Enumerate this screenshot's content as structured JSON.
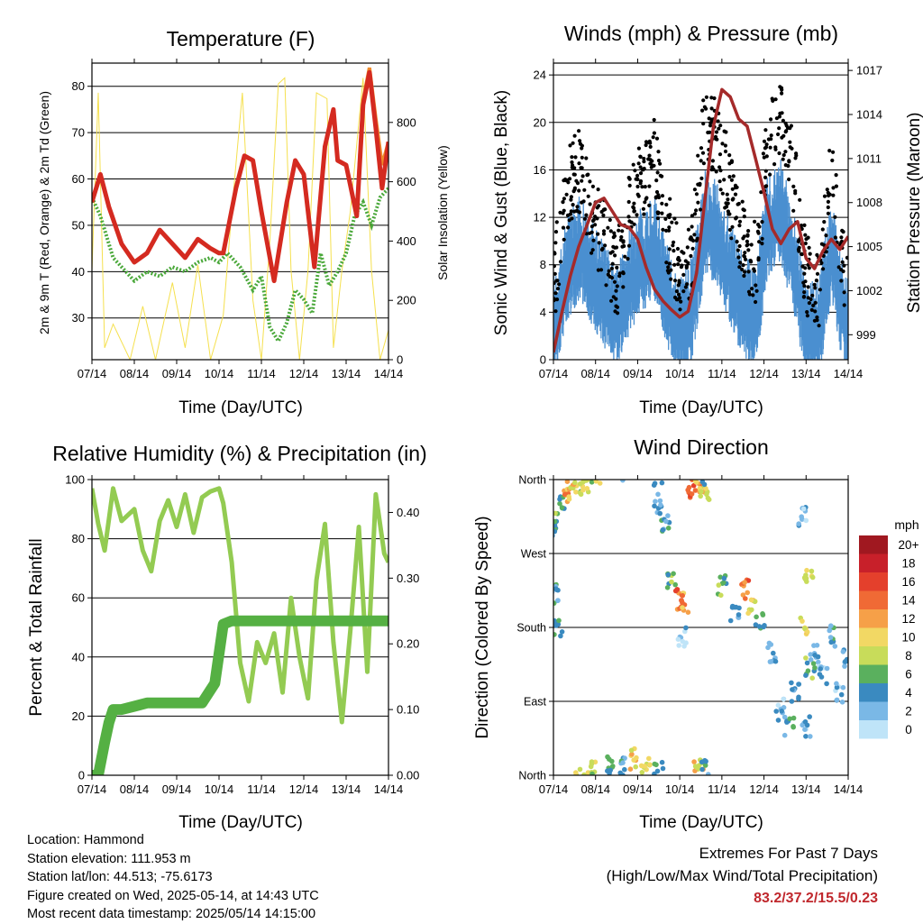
{
  "chart_data": [
    {
      "type": "line",
      "title": "Temperature (F)",
      "xlabel": "Time (Day/UTC)",
      "ylabel": "2m & 9m T (Red, Orange) & 2m Td (Green)",
      "y2label": "Solar Insolation (Yellow)",
      "x_ticks": [
        "07/14",
        "08/14",
        "09/14",
        "10/14",
        "11/14",
        "12/14",
        "13/14",
        "14/14"
      ],
      "ylim": [
        21,
        85
      ],
      "y_ticks": [
        30,
        40,
        50,
        60,
        70,
        80
      ],
      "y2lim": [
        0,
        1000
      ],
      "y2_ticks": [
        0,
        200,
        400,
        600,
        800
      ],
      "grid": true,
      "series": [
        {
          "color": "#d42a20",
          "x": [
            0,
            0.2,
            0.4,
            0.7,
            1.0,
            1.3,
            1.6,
            1.9,
            2.2,
            2.5,
            2.8,
            3.0,
            3.1,
            3.4,
            3.6,
            3.8,
            4.0,
            4.3,
            4.6,
            4.8,
            5.0,
            5.25,
            5.5,
            5.7,
            5.8,
            6.0,
            6.25,
            6.4,
            6.55,
            6.7,
            6.85,
            7.0
          ],
          "y": [
            55,
            61,
            54,
            46,
            42,
            44,
            49,
            46,
            43,
            47,
            45,
            44,
            44,
            58,
            65,
            64,
            53,
            38,
            55,
            64,
            61,
            41,
            67,
            75,
            64,
            63,
            52,
            76,
            83,
            71,
            58,
            68
          ]
        },
        {
          "color": "#f08a2a",
          "x": [
            6.25,
            6.4,
            6.55,
            6.7,
            6.85,
            7.0
          ],
          "y": [
            53,
            77,
            84,
            73,
            63,
            68
          ]
        },
        {
          "color": "#4aa83a",
          "x": [
            0,
            0.2,
            0.5,
            0.8,
            1.0,
            1.3,
            1.6,
            1.9,
            2.2,
            2.5,
            2.8,
            3.0,
            3.2,
            3.5,
            3.8,
            4.0,
            4.2,
            4.4,
            4.6,
            4.8,
            5.0,
            5.2,
            5.4,
            5.6,
            5.8,
            6.0,
            6.2,
            6.4,
            6.6,
            6.8,
            7.0
          ],
          "y": [
            56,
            52,
            43,
            40,
            38,
            40,
            39,
            41,
            40,
            42,
            43,
            42,
            44,
            41,
            36,
            39,
            28,
            25,
            29,
            36,
            34,
            31,
            44,
            37,
            40,
            44,
            52,
            55,
            50,
            56,
            58
          ]
        },
        {
          "color": "#f5e04e",
          "x": [
            0,
            0.15,
            0.3,
            0.5,
            0.9,
            1.2,
            1.5,
            1.9,
            2.2,
            2.5,
            2.8,
            3.1,
            3.3,
            3.55,
            3.8,
            4.0,
            4.2,
            4.4,
            4.55,
            4.7,
            4.9,
            5.1,
            5.3,
            5.55,
            5.7,
            5.9,
            6.1,
            6.4,
            6.6,
            6.8,
            7.0
          ],
          "y": [
            300,
            900,
            40,
            120,
            0,
            180,
            0,
            260,
            40,
            320,
            0,
            150,
            500,
            900,
            200,
            0,
            400,
            930,
            950,
            300,
            0,
            300,
            900,
            880,
            40,
            300,
            500,
            950,
            300,
            0,
            100
          ]
        }
      ]
    },
    {
      "type": "line",
      "title": "Winds (mph) & Pressure (mb)",
      "xlabel": "Time (Day/UTC)",
      "ylabel": "Sonic Wind & Gust (Blue, Black)",
      "y2label": "Station Pressure (Maroon)",
      "x_ticks": [
        "07/14",
        "08/14",
        "09/14",
        "10/14",
        "11/14",
        "12/14",
        "13/14",
        "14/14"
      ],
      "ylim": [
        0,
        25
      ],
      "y_ticks": [
        0,
        4,
        8,
        12,
        16,
        20,
        24
      ],
      "y2lim": [
        997.3,
        1017.5
      ],
      "y2_ticks": [
        999,
        1002,
        1005,
        1008,
        1011,
        1014,
        1017
      ],
      "grid": true,
      "series": [
        {
          "color": "#000000",
          "type": "scatter",
          "x": [
            0,
            0.3,
            0.6,
            0.9,
            1.2,
            1.5,
            1.8,
            2.1,
            2.4,
            2.7,
            3.0,
            3.3,
            3.6,
            3.9,
            4.2,
            4.5,
            4.8,
            5.1,
            5.4,
            5.7,
            6.0,
            6.3,
            6.6,
            6.9,
            7.0
          ],
          "y": [
            6,
            14,
            16,
            12,
            10,
            7,
            12,
            15,
            17,
            11,
            7,
            9,
            20,
            19,
            14,
            10,
            8,
            18,
            20,
            16,
            7,
            6,
            16,
            8,
            5
          ]
        },
        {
          "color": "#4a8fd0",
          "x": [
            0,
            0.3,
            0.6,
            0.9,
            1.2,
            1.5,
            1.8,
            2.1,
            2.4,
            2.7,
            3.0,
            3.3,
            3.6,
            3.9,
            4.2,
            4.5,
            4.8,
            5.1,
            5.4,
            5.7,
            6.0,
            6.3,
            6.6,
            6.9,
            7.0
          ],
          "y": [
            3,
            8,
            10,
            8,
            6,
            4,
            7,
            9,
            10,
            6,
            3,
            5,
            12,
            11,
            8,
            5,
            4,
            12,
            13,
            9,
            3,
            3,
            10,
            4,
            3
          ]
        },
        {
          "color": "#a52a2a",
          "x": [
            0,
            0.2,
            0.4,
            0.6,
            0.8,
            1.0,
            1.2,
            1.4,
            1.6,
            1.8,
            2.0,
            2.2,
            2.4,
            2.6,
            2.8,
            3.0,
            3.2,
            3.4,
            3.6,
            3.8,
            4.0,
            4.2,
            4.4,
            4.6,
            4.8,
            5.0,
            5.2,
            5.4,
            5.6,
            5.8,
            6.0,
            6.2,
            6.4,
            6.6,
            6.8,
            7.0
          ],
          "y": [
            997.8,
            1000.5,
            1003,
            1005,
            1006.5,
            1008,
            1008.3,
            1007.4,
            1006.5,
            1006.3,
            1005.5,
            1003.6,
            1002.1,
            1001.3,
            1000.7,
            1000.2,
            1000.6,
            1003.2,
            1008.3,
            1013.2,
            1015.7,
            1015.2,
            1013.7,
            1013.2,
            1011,
            1008.7,
            1006.2,
            1005.2,
            1006.2,
            1006.7,
            1004.2,
            1003.5,
            1004.7,
            1005.5,
            1004.8,
            1005.7
          ]
        }
      ]
    },
    {
      "type": "line",
      "title": "Relative Humidity (%) & Precipitation (in)",
      "xlabel": "Time (Day/UTC)",
      "ylabel": "Percent & Total Rainfall",
      "x_ticks": [
        "07/14",
        "08/14",
        "09/14",
        "10/14",
        "11/14",
        "12/14",
        "13/14",
        "14/14"
      ],
      "ylim": [
        0,
        100
      ],
      "y_ticks": [
        0,
        20,
        40,
        60,
        80,
        100
      ],
      "y2lim": [
        0,
        0.45
      ],
      "y2_ticks": [
        "0.00",
        "0.10",
        "0.20",
        "0.30",
        "0.40"
      ],
      "grid": true,
      "series": [
        {
          "color": "#93cb52",
          "x": [
            0,
            0.15,
            0.3,
            0.5,
            0.7,
            1.0,
            1.2,
            1.4,
            1.6,
            1.8,
            2.0,
            2.2,
            2.4,
            2.6,
            2.8,
            3.0,
            3.1,
            3.3,
            3.5,
            3.7,
            3.9,
            4.1,
            4.3,
            4.5,
            4.7,
            4.9,
            5.1,
            5.3,
            5.5,
            5.7,
            5.9,
            6.1,
            6.3,
            6.5,
            6.7,
            6.9,
            7.0
          ],
          "y": [
            97,
            85,
            76,
            97,
            86,
            90,
            76,
            69,
            86,
            93,
            84,
            95,
            82,
            94,
            96,
            97,
            92,
            72,
            38,
            25,
            45,
            38,
            48,
            28,
            60,
            40,
            26,
            66,
            85,
            45,
            18,
            49,
            84,
            35,
            95,
            75,
            72
          ]
        },
        {
          "color": "#55b043",
          "x": [
            0,
            0.15,
            0.3,
            0.4,
            0.5,
            0.7,
            1.0,
            1.3,
            1.6,
            1.9,
            2.2,
            2.4,
            2.6,
            2.7,
            2.9,
            3.1,
            3.3,
            3.5,
            4.0,
            5.0,
            6.0,
            7.0
          ],
          "y": [
            0,
            0,
            0.05,
            0.08,
            0.1,
            0.1,
            0.105,
            0.11,
            0.11,
            0.11,
            0.11,
            0.11,
            0.11,
            0.12,
            0.14,
            0.23,
            0.235,
            0.235,
            0.235,
            0.235,
            0.235,
            0.235
          ]
        }
      ]
    },
    {
      "type": "scatter",
      "title": "Wind Direction",
      "xlabel": "Time (Day/UTC)",
      "ylabel": "Direction (Colored By Speed)",
      "x_ticks": [
        "07/14",
        "08/14",
        "09/14",
        "10/14",
        "11/14",
        "12/14",
        "13/14",
        "14/14"
      ],
      "y_ticks": [
        "North",
        "East",
        "South",
        "West",
        "North"
      ],
      "ylim": [
        0,
        360
      ],
      "grid": true,
      "colorbar": {
        "unit": "mph",
        "labels": [
          "20+",
          "18",
          "16",
          "14",
          "12",
          "10",
          "8",
          "6",
          "4",
          "2",
          "0"
        ],
        "colors": [
          "#a01820",
          "#c8202a",
          "#e4402c",
          "#f06a35",
          "#f6a048",
          "#f2d864",
          "#c8dc5a",
          "#5ab05e",
          "#3a8ac0",
          "#7ab8e6",
          "#bfe4f8"
        ]
      },
      "points": [
        {
          "x": 0.05,
          "y": 300,
          "s": 4
        },
        {
          "x": 0.15,
          "y": 330,
          "s": 6
        },
        {
          "x": 0.3,
          "y": 345,
          "s": 12
        },
        {
          "x": 0.45,
          "y": 350,
          "s": 10
        },
        {
          "x": 0.6,
          "y": 355,
          "s": 8
        },
        {
          "x": 0.8,
          "y": 358,
          "s": 9
        },
        {
          "x": 0.1,
          "y": 180,
          "s": 5
        },
        {
          "x": 0.05,
          "y": 220,
          "s": 4
        },
        {
          "x": 1.0,
          "y": 5,
          "s": 8
        },
        {
          "x": 1.3,
          "y": 15,
          "s": 6
        },
        {
          "x": 1.6,
          "y": 10,
          "s": 4
        },
        {
          "x": 1.9,
          "y": 20,
          "s": 10
        },
        {
          "x": 2.2,
          "y": 15,
          "s": 9
        },
        {
          "x": 2.5,
          "y": 5,
          "s": 6
        },
        {
          "x": 2.5,
          "y": 330,
          "s": 3
        },
        {
          "x": 2.65,
          "y": 310,
          "s": 4
        },
        {
          "x": 2.8,
          "y": 240,
          "s": 6
        },
        {
          "x": 3.0,
          "y": 215,
          "s": 14
        },
        {
          "x": 3.1,
          "y": 210,
          "s": 12
        },
        {
          "x": 3.05,
          "y": 170,
          "s": 2
        },
        {
          "x": 3.3,
          "y": 350,
          "s": 14
        },
        {
          "x": 3.5,
          "y": 355,
          "s": 12
        },
        {
          "x": 3.6,
          "y": 345,
          "s": 8
        },
        {
          "x": 3.45,
          "y": 10,
          "s": 10
        },
        {
          "x": 3.6,
          "y": 5,
          "s": 4
        },
        {
          "x": 4.0,
          "y": 230,
          "s": 6
        },
        {
          "x": 4.3,
          "y": 200,
          "s": 4
        },
        {
          "x": 4.55,
          "y": 225,
          "s": 14
        },
        {
          "x": 4.7,
          "y": 210,
          "s": 10
        },
        {
          "x": 4.9,
          "y": 190,
          "s": 5
        },
        {
          "x": 5.2,
          "y": 150,
          "s": 3
        },
        {
          "x": 5.4,
          "y": 80,
          "s": 2
        },
        {
          "x": 5.6,
          "y": 60,
          "s": 4
        },
        {
          "x": 5.75,
          "y": 100,
          "s": 3
        },
        {
          "x": 5.95,
          "y": 180,
          "s": 10
        },
        {
          "x": 6.05,
          "y": 240,
          "s": 9
        },
        {
          "x": 6.0,
          "y": 60,
          "s": 2
        },
        {
          "x": 6.2,
          "y": 150,
          "s": 3
        },
        {
          "x": 6.4,
          "y": 120,
          "s": 2
        },
        {
          "x": 6.6,
          "y": 170,
          "s": 4
        },
        {
          "x": 6.8,
          "y": 100,
          "s": 2
        },
        {
          "x": 6.95,
          "y": 140,
          "s": 3
        },
        {
          "x": 6.1,
          "y": 130,
          "s": 6
        },
        {
          "x": 5.9,
          "y": 315,
          "s": 2
        }
      ]
    }
  ],
  "info": {
    "location": "Location: Hammond",
    "elevation": "Station elevation: 111.953 m",
    "latlon": "Station lat/lon: 44.513; -75.6173",
    "created": "Figure created on Wed, 2025-05-14, at 14:43 UTC",
    "recent": "Most recent data timestamp: 2025/05/14 14:15:00"
  },
  "extremes": {
    "line1": "Extremes For Past 7 Days",
    "line2": "(High/Low/Max Wind/Total Precipitation)",
    "values": "83.2/37.2/15.5/0.23"
  }
}
